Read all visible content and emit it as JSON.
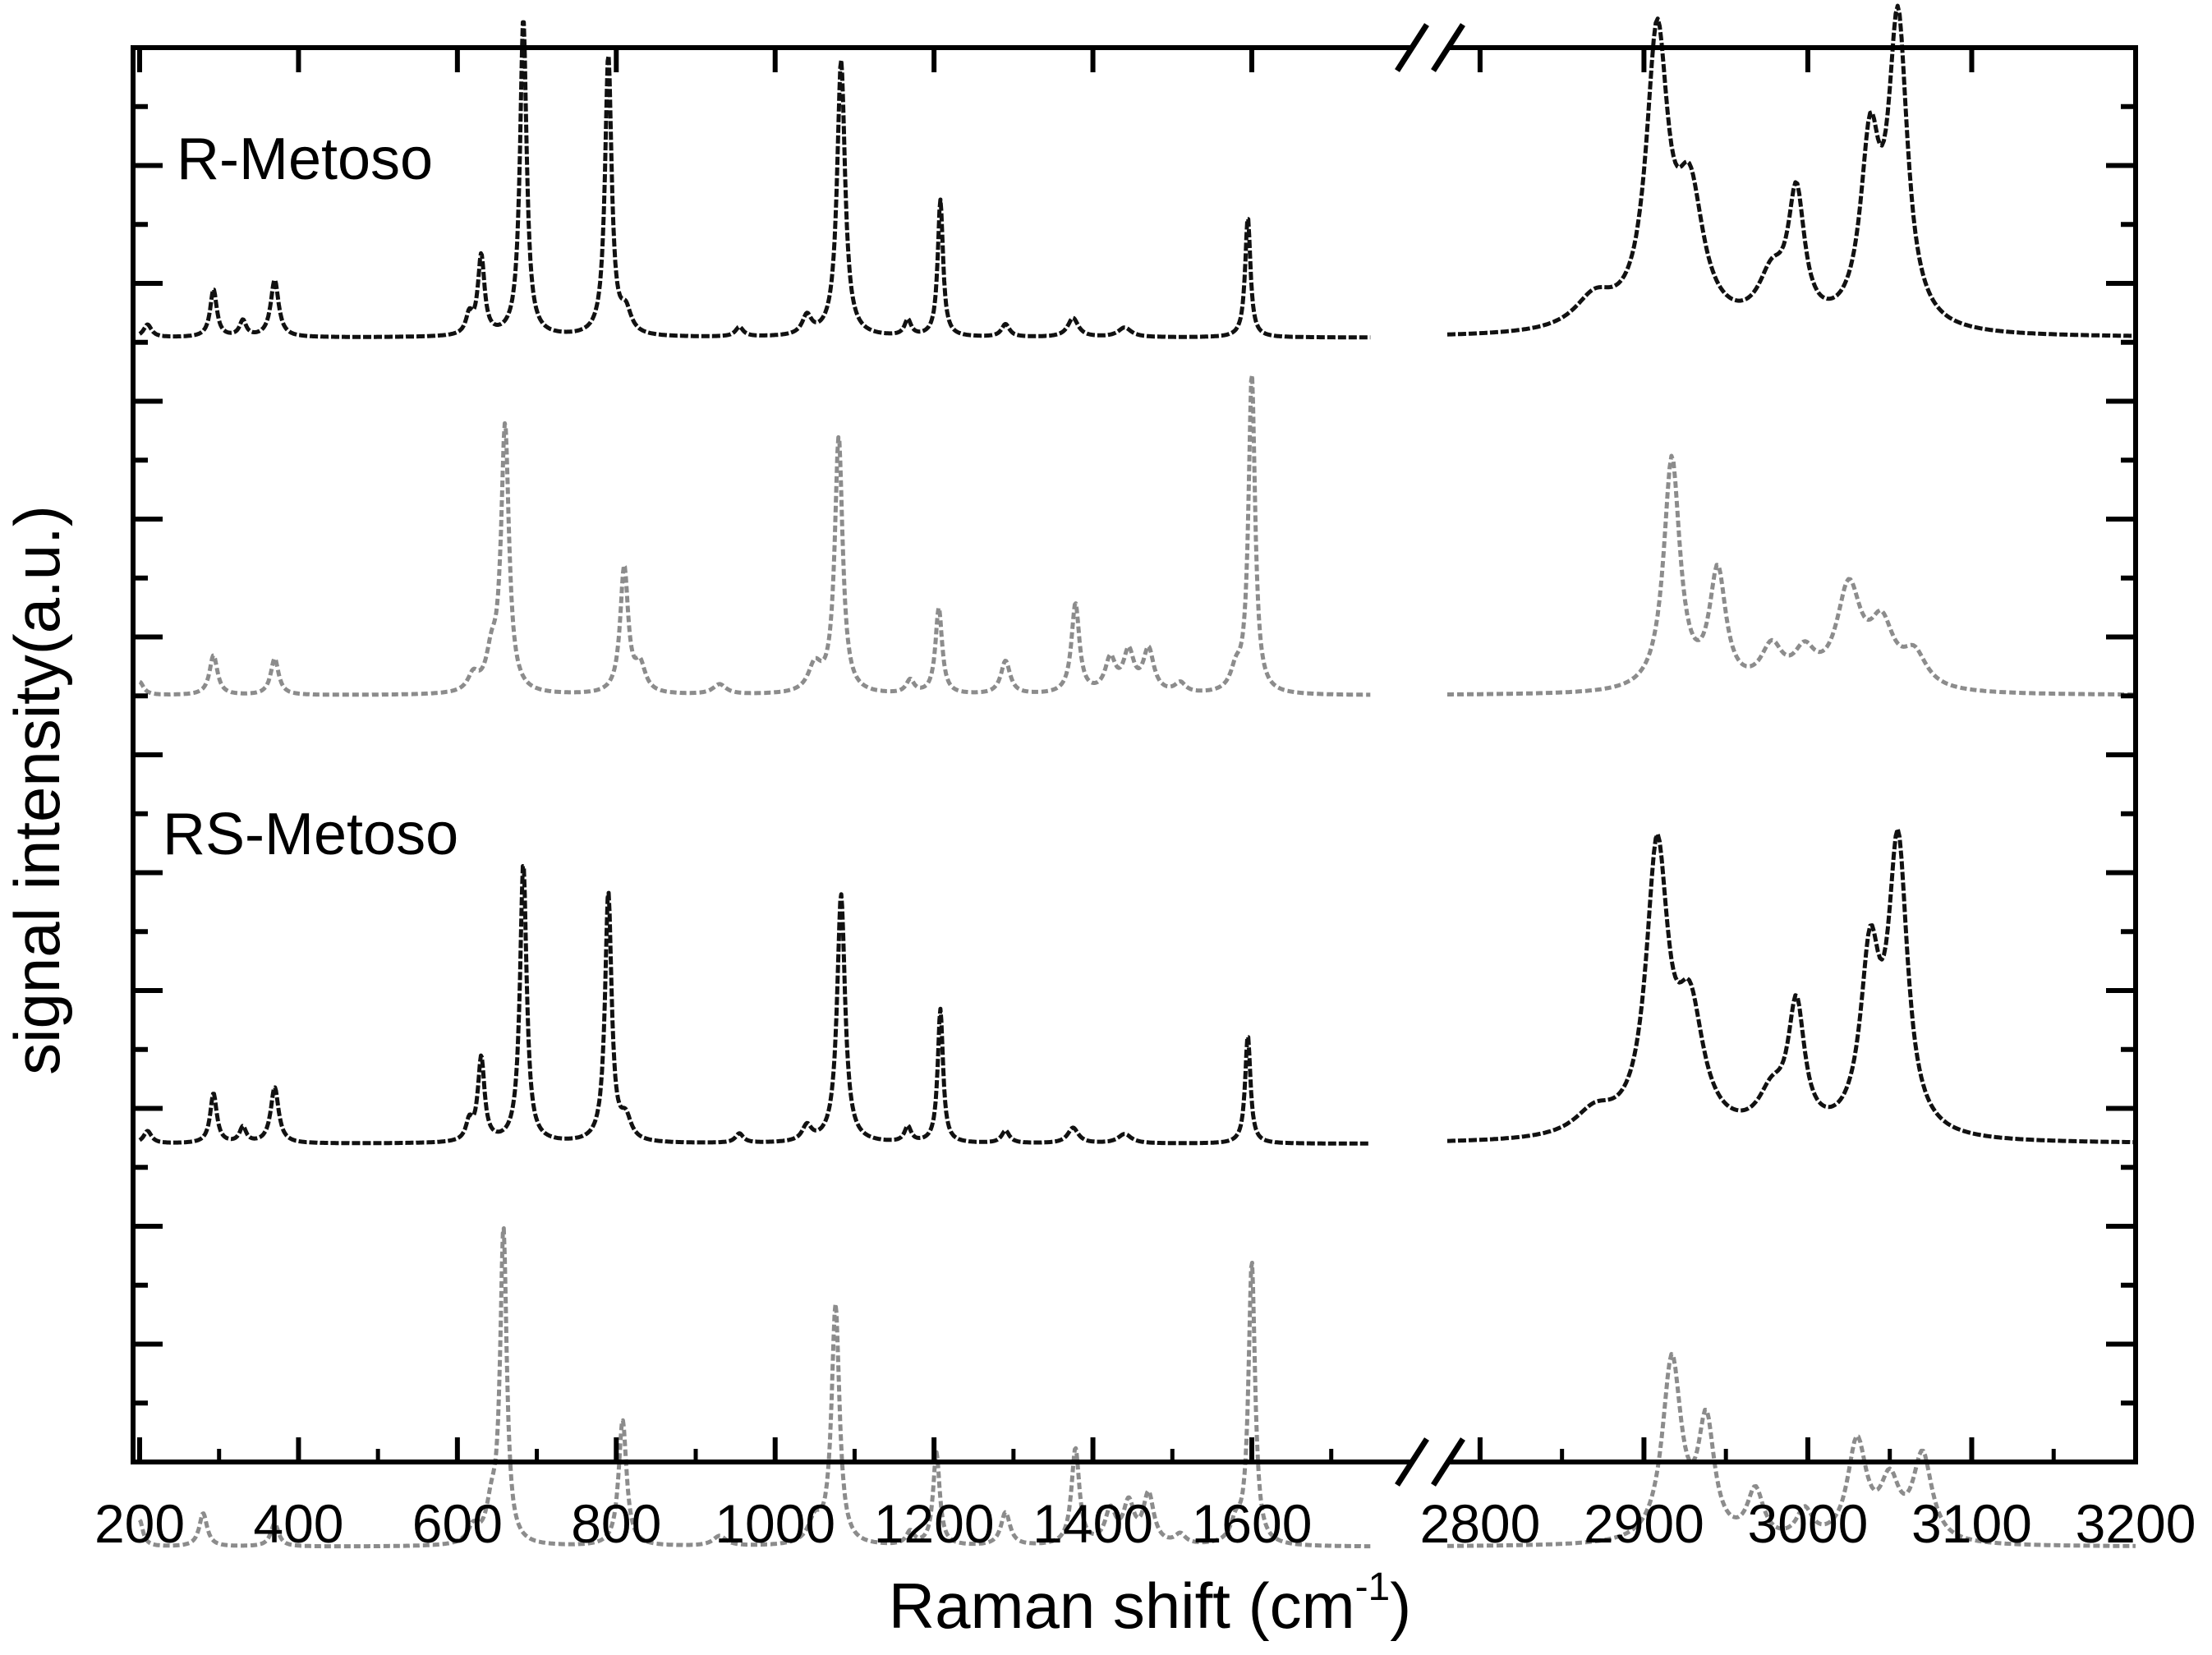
{
  "chart_data": {
    "type": "line",
    "xlabel": "Raman shift (cm",
    "xlabel_sup": "-1",
    "xlabel_end": ")",
    "ylabel": "signal intensity(a.u.)",
    "axis_break": {
      "from": 1750,
      "to": 2780
    },
    "x_segments": [
      [
        200,
        1750
      ],
      [
        2780,
        3200
      ]
    ],
    "x_tick_labels_left": [
      "200",
      "400",
      "600",
      "800",
      "1000",
      "1200",
      "1400",
      "1600"
    ],
    "x_tick_values_left": [
      200,
      400,
      600,
      800,
      1000,
      1200,
      1400,
      1600
    ],
    "x_tick_labels_right": [
      "2800",
      "2900",
      "3000",
      "3100",
      "3200"
    ],
    "x_tick_values_right": [
      2800,
      2900,
      3000,
      3100,
      3200
    ],
    "annotations": [
      "R-Metoso",
      "RS-Metoso"
    ],
    "legend": "none",
    "grid": false,
    "colors": {
      "experimental": "#111111",
      "calculated": "#8c8c8c"
    },
    "series": [
      {
        "group": "R-Metoso",
        "kind": "experimental",
        "baseline": 0.795,
        "scale": 0.225,
        "peaks": [
          [
            210,
            0.04,
            6
          ],
          [
            293,
            0.15,
            5
          ],
          [
            330,
            0.05,
            5
          ],
          [
            370,
            0.18,
            6
          ],
          [
            615,
            0.06,
            5
          ],
          [
            630,
            0.25,
            5
          ],
          [
            683,
            1.0,
            5
          ],
          [
            790,
            0.88,
            5
          ],
          [
            812,
            0.07,
            8
          ],
          [
            955,
            0.03,
            6
          ],
          [
            1040,
            0.06,
            7
          ],
          [
            1083,
            0.87,
            6
          ],
          [
            1167,
            0.05,
            5
          ],
          [
            1208,
            0.43,
            4
          ],
          [
            1290,
            0.04,
            6
          ],
          [
            1375,
            0.06,
            8
          ],
          [
            1440,
            0.03,
            10
          ],
          [
            1595,
            0.38,
            4
          ],
          [
            2870,
            0.1,
            15
          ],
          [
            2908,
            0.9,
            8
          ],
          [
            2928,
            0.4,
            10
          ],
          [
            2978,
            0.15,
            10
          ],
          [
            2993,
            0.4,
            6
          ],
          [
            3038,
            0.55,
            7
          ],
          [
            3055,
            0.95,
            7
          ]
        ]
      },
      {
        "group": "R-Metoso",
        "kind": "calculated",
        "baseline": 0.542,
        "scale": 0.235,
        "peaks": [
          [
            200,
            0.04,
            6
          ],
          [
            293,
            0.12,
            6
          ],
          [
            370,
            0.11,
            6
          ],
          [
            620,
            0.05,
            8
          ],
          [
            643,
            0.1,
            8
          ],
          [
            660,
            0.8,
            6
          ],
          [
            810,
            0.38,
            6
          ],
          [
            830,
            0.08,
            8
          ],
          [
            930,
            0.03,
            10
          ],
          [
            1050,
            0.08,
            10
          ],
          [
            1080,
            0.77,
            6
          ],
          [
            1170,
            0.04,
            6
          ],
          [
            1206,
            0.26,
            5
          ],
          [
            1290,
            0.1,
            7
          ],
          [
            1378,
            0.27,
            6
          ],
          [
            1422,
            0.1,
            8
          ],
          [
            1445,
            0.12,
            8
          ],
          [
            1470,
            0.13,
            8
          ],
          [
            1510,
            0.03,
            8
          ],
          [
            1580,
            0.06,
            8
          ],
          [
            1600,
            0.96,
            5
          ],
          [
            2917,
            0.7,
            6
          ],
          [
            2945,
            0.35,
            6
          ],
          [
            2978,
            0.12,
            8
          ],
          [
            2998,
            0.1,
            8
          ],
          [
            3025,
            0.3,
            9
          ],
          [
            3045,
            0.18,
            9
          ],
          [
            3065,
            0.1,
            9
          ]
        ]
      },
      {
        "group": "RS-Metoso",
        "kind": "experimental",
        "baseline": 0.225,
        "scale": 0.22,
        "peaks": [
          [
            210,
            0.04,
            6
          ],
          [
            293,
            0.16,
            5
          ],
          [
            330,
            0.05,
            5
          ],
          [
            370,
            0.18,
            6
          ],
          [
            615,
            0.06,
            5
          ],
          [
            630,
            0.27,
            5
          ],
          [
            683,
            0.9,
            5
          ],
          [
            790,
            0.8,
            5
          ],
          [
            812,
            0.07,
            8
          ],
          [
            955,
            0.03,
            6
          ],
          [
            1040,
            0.05,
            7
          ],
          [
            1083,
            0.8,
            6
          ],
          [
            1167,
            0.05,
            5
          ],
          [
            1208,
            0.43,
            4
          ],
          [
            1290,
            0.04,
            6
          ],
          [
            1375,
            0.05,
            8
          ],
          [
            1440,
            0.03,
            10
          ],
          [
            1595,
            0.35,
            4
          ],
          [
            2870,
            0.08,
            15
          ],
          [
            2908,
            0.9,
            8
          ],
          [
            2928,
            0.38,
            10
          ],
          [
            2978,
            0.12,
            10
          ],
          [
            2993,
            0.4,
            6
          ],
          [
            3038,
            0.55,
            7
          ],
          [
            3055,
            0.92,
            7
          ]
        ]
      },
      {
        "group": "RS-Metoso",
        "kind": "calculated",
        "baseline": -0.06,
        "scale": 0.235,
        "peaks": [
          [
            200,
            0.08,
            5
          ],
          [
            280,
            0.1,
            6
          ],
          [
            370,
            0.07,
            6
          ],
          [
            620,
            0.05,
            8
          ],
          [
            643,
            0.1,
            8
          ],
          [
            658,
            0.94,
            5
          ],
          [
            808,
            0.38,
            6
          ],
          [
            930,
            0.03,
            10
          ],
          [
            1050,
            0.07,
            10
          ],
          [
            1076,
            0.72,
            6
          ],
          [
            1170,
            0.04,
            6
          ],
          [
            1203,
            0.28,
            5
          ],
          [
            1290,
            0.1,
            7
          ],
          [
            1378,
            0.29,
            6
          ],
          [
            1422,
            0.1,
            8
          ],
          [
            1445,
            0.12,
            8
          ],
          [
            1470,
            0.15,
            8
          ],
          [
            1510,
            0.03,
            8
          ],
          [
            1580,
            0.06,
            8
          ],
          [
            1600,
            0.85,
            5
          ],
          [
            2917,
            0.55,
            7
          ],
          [
            2938,
            0.35,
            6
          ],
          [
            2968,
            0.15,
            6
          ],
          [
            2998,
            0.09,
            6
          ],
          [
            3030,
            0.3,
            7
          ],
          [
            3050,
            0.17,
            7
          ],
          [
            3070,
            0.26,
            7
          ]
        ]
      }
    ]
  }
}
